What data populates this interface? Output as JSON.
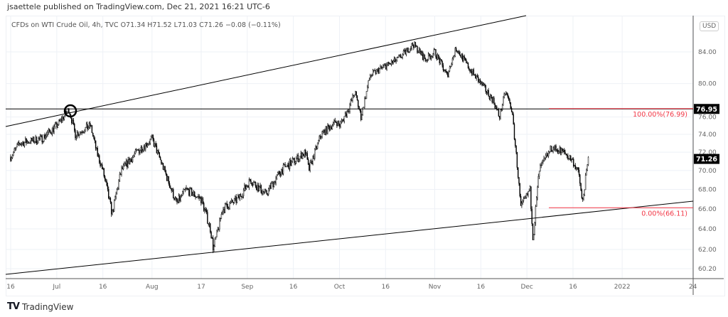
{
  "header": {
    "published": "jsaettele published on TradingView.com, Dec 21, 2021 16:21 UTC-6",
    "legend": "CFDs on WTI Crude Oil, 4h, TVC  O71.34  H71.52  L71.03  C71.26  −0.08 (−0.11%)"
  },
  "currency": "USD",
  "footer": {
    "brand": "TradingView",
    "logo": "TV"
  },
  "chart_data": {
    "type": "candlestick",
    "title": "CFDs on WTI Crude Oil, 4h, TVC",
    "ohlc_last": {
      "open": 71.34,
      "high": 71.52,
      "low": 71.03,
      "close": 71.26,
      "change": -0.08,
      "change_pct": -0.11
    },
    "y_scale": "log",
    "ylim": [
      59.5,
      88
    ],
    "y_ticks": [
      "60.20",
      "62.00",
      "64.00",
      "66.00",
      "68.00",
      "70.00",
      "72.00",
      "74.00",
      "76.00",
      "80.00",
      "84.00"
    ],
    "x_ticks": [
      "16",
      "Jul",
      "16",
      "Aug",
      "17",
      "Sep",
      "16",
      "Oct",
      "16",
      "Nov",
      "16",
      "Dec",
      "16",
      "2022",
      "24"
    ],
    "x_tick_dates": [
      "2021-06-16",
      "2021-07-01",
      "2021-07-16",
      "2021-08-01",
      "2021-08-17",
      "2021-09-01",
      "2021-09-16",
      "2021-10-01",
      "2021-10-16",
      "2021-11-01",
      "2021-11-16",
      "2021-12-01",
      "2021-12-16",
      "2022-01-01",
      "2022-01-24"
    ],
    "price_path": [
      [
        "2021-06-16",
        71.5
      ],
      [
        "2021-06-19",
        73
      ],
      [
        "2021-06-26",
        73.5
      ],
      [
        "2021-07-01",
        75
      ],
      [
        "2021-07-05",
        76.9
      ],
      [
        "2021-07-07",
        74
      ],
      [
        "2021-07-12",
        75
      ],
      [
        "2021-07-14",
        72
      ],
      [
        "2021-07-16",
        70
      ],
      [
        "2021-07-19",
        65.5
      ],
      [
        "2021-07-22",
        70
      ],
      [
        "2021-07-27",
        72
      ],
      [
        "2021-08-01",
        73.5
      ],
      [
        "2021-08-05",
        70
      ],
      [
        "2021-08-09",
        66.5
      ],
      [
        "2021-08-12",
        68
      ],
      [
        "2021-08-17",
        67
      ],
      [
        "2021-08-20",
        64
      ],
      [
        "2021-08-21",
        62
      ],
      [
        "2021-08-24",
        66
      ],
      [
        "2021-08-29",
        67
      ],
      [
        "2021-09-02",
        69
      ],
      [
        "2021-09-07",
        67.5
      ],
      [
        "2021-09-12",
        70
      ],
      [
        "2021-09-16",
        71
      ],
      [
        "2021-09-20",
        72
      ],
      [
        "2021-09-21",
        70
      ],
      [
        "2021-09-25",
        74
      ],
      [
        "2021-09-30",
        75.5
      ],
      [
        "2021-10-01",
        75
      ],
      [
        "2021-10-04",
        77
      ],
      [
        "2021-10-06",
        79
      ],
      [
        "2021-10-08",
        76
      ],
      [
        "2021-10-11",
        81
      ],
      [
        "2021-10-15",
        82
      ],
      [
        "2021-10-20",
        83
      ],
      [
        "2021-10-25",
        85
      ],
      [
        "2021-10-29",
        83
      ],
      [
        "2021-11-01",
        84
      ],
      [
        "2021-11-05",
        81
      ],
      [
        "2021-11-08",
        84.5
      ],
      [
        "2021-11-12",
        82
      ],
      [
        "2021-11-16",
        80
      ],
      [
        "2021-11-20",
        78
      ],
      [
        "2021-11-22",
        76
      ],
      [
        "2021-11-24",
        79
      ],
      [
        "2021-11-26",
        77
      ],
      [
        "2021-11-28",
        70
      ],
      [
        "2021-11-29",
        66
      ],
      [
        "2021-12-02",
        68
      ],
      [
        "2021-12-03",
        63
      ],
      [
        "2021-12-05",
        70
      ],
      [
        "2021-12-09",
        72.5
      ],
      [
        "2021-12-13",
        72
      ],
      [
        "2021-12-16",
        71
      ],
      [
        "2021-12-18",
        69.5
      ],
      [
        "2021-12-19",
        66.5
      ],
      [
        "2021-12-21",
        71.26
      ]
    ],
    "last_price": "71.26",
    "marked_level": "76.95",
    "fibonacci": [
      {
        "label": "100.00%(76.99)",
        "value": 76.99
      },
      {
        "label": "0.00%(66.11)",
        "value": 66.11
      }
    ],
    "fib_color": "#f23645",
    "candle_color": "#000000",
    "grid": true
  }
}
